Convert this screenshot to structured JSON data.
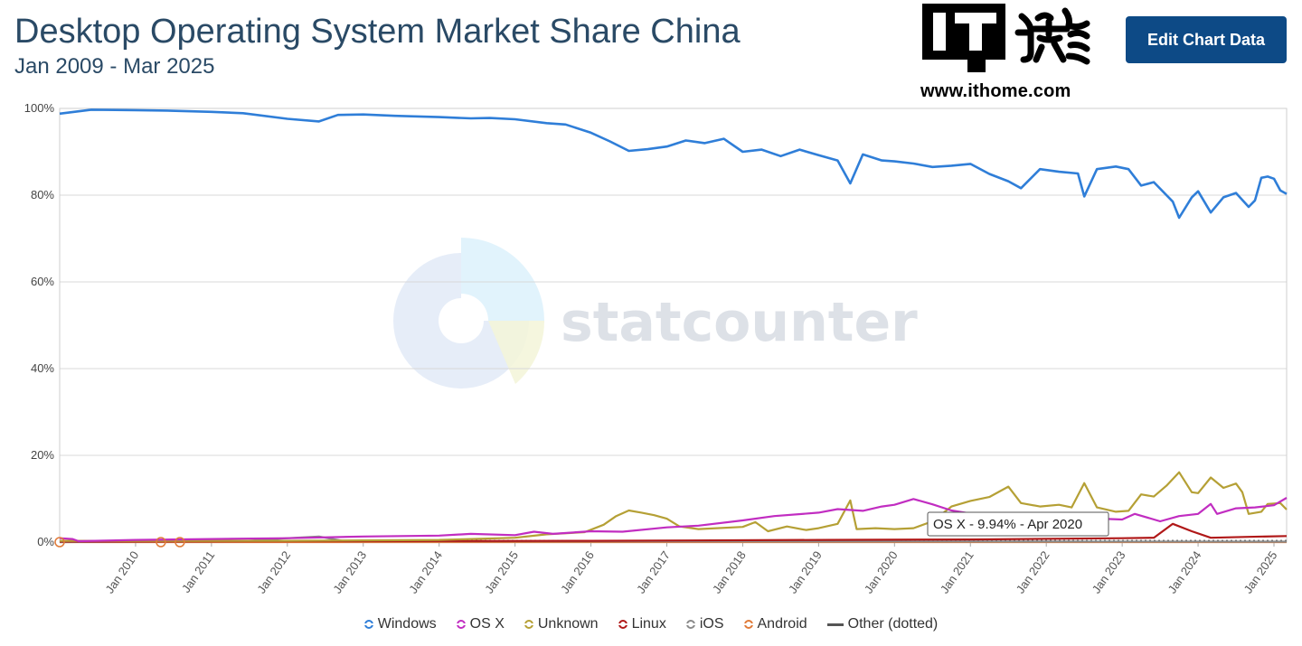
{
  "header": {
    "title": "Desktop Operating System Market Share China",
    "subtitle": "Jan 2009 - Mar 2025",
    "edit_button": "Edit Chart Data"
  },
  "logo": {
    "url_text": "www.ithome.com",
    "mark_text": "IT之家"
  },
  "watermark": {
    "text": "statcounter"
  },
  "colors": {
    "Windows": "#2f7ed8",
    "OS X": "#c12dc1",
    "Unknown": "#b5a035",
    "Linux": "#b01818",
    "iOS": "#8a8a8a",
    "Android": "#e07b39",
    "Other (dotted)": "#555555"
  },
  "tooltip": {
    "text": "OS X - 9.94% - Apr 2020"
  },
  "chart_data": {
    "type": "line",
    "title": "Desktop Operating System Market Share China",
    "subtitle": "Jan 2009 - Mar 2025",
    "x_start": "2009-01",
    "x_end": "2025-03",
    "x_ticks": [
      "Jan 2010",
      "Jan 2011",
      "Jan 2012",
      "Jan 2013",
      "Jan 2014",
      "Jan 2015",
      "Jan 2016",
      "Jan 2017",
      "Jan 2018",
      "Jan 2019",
      "Jan 2020",
      "Jan 2021",
      "Jan 2022",
      "Jan 2023",
      "Jan 2024",
      "Jan 2025"
    ],
    "y_ticks": [
      "0%",
      "20%",
      "40%",
      "60%",
      "80%",
      "100%"
    ],
    "ylim": [
      0,
      100
    ],
    "grid": true,
    "legend_position": "bottom",
    "series": [
      {
        "name": "Windows",
        "points": [
          [
            "2009-01",
            98.8
          ],
          [
            "2009-06",
            99.7
          ],
          [
            "2010-01",
            99.6
          ],
          [
            "2010-06",
            99.5
          ],
          [
            "2011-01",
            99.2
          ],
          [
            "2011-06",
            98.9
          ],
          [
            "2012-01",
            97.6
          ],
          [
            "2012-06",
            97.0
          ],
          [
            "2012-09",
            98.5
          ],
          [
            "2013-01",
            98.6
          ],
          [
            "2013-06",
            98.3
          ],
          [
            "2014-01",
            98.0
          ],
          [
            "2014-06",
            97.7
          ],
          [
            "2014-09",
            97.8
          ],
          [
            "2015-01",
            97.5
          ],
          [
            "2015-06",
            96.6
          ],
          [
            "2015-09",
            96.3
          ],
          [
            "2016-01",
            94.4
          ],
          [
            "2016-04",
            92.4
          ],
          [
            "2016-07",
            90.2
          ],
          [
            "2016-10",
            90.6
          ],
          [
            "2017-01",
            91.2
          ],
          [
            "2017-04",
            92.6
          ],
          [
            "2017-07",
            92.0
          ],
          [
            "2017-10",
            93.0
          ],
          [
            "2018-01",
            90.0
          ],
          [
            "2018-04",
            90.5
          ],
          [
            "2018-07",
            89.0
          ],
          [
            "2018-10",
            90.5
          ],
          [
            "2019-01",
            89.2
          ],
          [
            "2019-04",
            88.0
          ],
          [
            "2019-06",
            82.7
          ],
          [
            "2019-08",
            89.4
          ],
          [
            "2019-11",
            88.0
          ],
          [
            "2020-01",
            87.8
          ],
          [
            "2020-04",
            87.3
          ],
          [
            "2020-07",
            86.5
          ],
          [
            "2020-10",
            86.8
          ],
          [
            "2021-01",
            87.2
          ],
          [
            "2021-04",
            84.9
          ],
          [
            "2021-07",
            83.2
          ],
          [
            "2021-09",
            81.6
          ],
          [
            "2021-12",
            86.0
          ],
          [
            "2022-03",
            85.4
          ],
          [
            "2022-06",
            85.0
          ],
          [
            "2022-07",
            79.7
          ],
          [
            "2022-09",
            86.0
          ],
          [
            "2022-12",
            86.6
          ],
          [
            "2023-02",
            86.0
          ],
          [
            "2023-04",
            82.2
          ],
          [
            "2023-06",
            83.0
          ],
          [
            "2023-09",
            78.5
          ],
          [
            "2023-10",
            74.8
          ],
          [
            "2023-12",
            79.5
          ],
          [
            "2024-01",
            80.9
          ],
          [
            "2024-03",
            76.0
          ],
          [
            "2024-05",
            79.5
          ],
          [
            "2024-07",
            80.5
          ],
          [
            "2024-09",
            77.3
          ],
          [
            "2024-10",
            78.8
          ],
          [
            "2024-11",
            84.0
          ],
          [
            "2024-12",
            84.3
          ],
          [
            "2025-01",
            83.8
          ],
          [
            "2025-02",
            81.1
          ],
          [
            "2025-03",
            80.3
          ]
        ]
      },
      {
        "name": "OS X",
        "points": [
          [
            "2009-01",
            0.9
          ],
          [
            "2009-03",
            0.7
          ],
          [
            "2009-04",
            0.2
          ],
          [
            "2010-01",
            0.5
          ],
          [
            "2011-01",
            0.7
          ],
          [
            "2012-01",
            0.9
          ],
          [
            "2013-01",
            1.3
          ],
          [
            "2014-01",
            1.5
          ],
          [
            "2014-06",
            1.9
          ],
          [
            "2015-01",
            1.6
          ],
          [
            "2015-04",
            2.4
          ],
          [
            "2015-07",
            1.9
          ],
          [
            "2016-01",
            2.5
          ],
          [
            "2016-06",
            2.4
          ],
          [
            "2017-01",
            3.4
          ],
          [
            "2017-06",
            3.8
          ],
          [
            "2018-01",
            5.0
          ],
          [
            "2018-06",
            6.0
          ],
          [
            "2019-01",
            6.8
          ],
          [
            "2019-04",
            7.6
          ],
          [
            "2019-08",
            7.2
          ],
          [
            "2019-11",
            8.2
          ],
          [
            "2020-01",
            8.6
          ],
          [
            "2020-04",
            9.94
          ],
          [
            "2020-07",
            8.7
          ],
          [
            "2020-10",
            7.3
          ],
          [
            "2021-01",
            6.6
          ],
          [
            "2021-06",
            6.2
          ],
          [
            "2022-01",
            5.9
          ],
          [
            "2022-06",
            5.6
          ],
          [
            "2023-01",
            5.2
          ],
          [
            "2023-03",
            6.5
          ],
          [
            "2023-07",
            4.8
          ],
          [
            "2023-10",
            6.0
          ],
          [
            "2024-01",
            6.5
          ],
          [
            "2024-03",
            8.8
          ],
          [
            "2024-04",
            6.5
          ],
          [
            "2024-07",
            7.8
          ],
          [
            "2024-10",
            8.0
          ],
          [
            "2025-01",
            8.5
          ],
          [
            "2025-03",
            10.2
          ]
        ]
      },
      {
        "name": "Unknown",
        "points": [
          [
            "2009-01",
            0.3
          ],
          [
            "2012-01",
            0.3
          ],
          [
            "2014-01",
            0.5
          ],
          [
            "2015-01",
            1.0
          ],
          [
            "2015-06",
            1.8
          ],
          [
            "2015-12",
            2.3
          ],
          [
            "2016-03",
            4.0
          ],
          [
            "2016-05",
            6.0
          ],
          [
            "2016-07",
            7.3
          ],
          [
            "2016-09",
            6.8
          ],
          [
            "2016-11",
            6.2
          ],
          [
            "2017-01",
            5.4
          ],
          [
            "2017-03",
            3.6
          ],
          [
            "2017-06",
            3.0
          ],
          [
            "2018-01",
            3.5
          ],
          [
            "2018-03",
            4.6
          ],
          [
            "2018-05",
            2.5
          ],
          [
            "2018-08",
            3.6
          ],
          [
            "2018-11",
            2.8
          ],
          [
            "2019-01",
            3.2
          ],
          [
            "2019-04",
            4.2
          ],
          [
            "2019-06",
            9.6
          ],
          [
            "2019-07",
            3.0
          ],
          [
            "2019-10",
            3.2
          ],
          [
            "2020-01",
            3.0
          ],
          [
            "2020-04",
            3.2
          ],
          [
            "2020-07",
            4.8
          ],
          [
            "2020-10",
            8.2
          ],
          [
            "2021-01",
            9.5
          ],
          [
            "2021-04",
            10.4
          ],
          [
            "2021-07",
            12.8
          ],
          [
            "2021-09",
            9.0
          ],
          [
            "2021-12",
            8.2
          ],
          [
            "2022-03",
            8.6
          ],
          [
            "2022-05",
            8.0
          ],
          [
            "2022-07",
            13.6
          ],
          [
            "2022-09",
            8.0
          ],
          [
            "2022-12",
            7.0
          ],
          [
            "2023-02",
            7.2
          ],
          [
            "2023-04",
            11.0
          ],
          [
            "2023-06",
            10.5
          ],
          [
            "2023-08",
            13.0
          ],
          [
            "2023-10",
            16.1
          ],
          [
            "2023-12",
            11.5
          ],
          [
            "2024-01",
            11.3
          ],
          [
            "2024-03",
            14.9
          ],
          [
            "2024-05",
            12.5
          ],
          [
            "2024-07",
            13.5
          ],
          [
            "2024-08",
            11.5
          ],
          [
            "2024-09",
            6.5
          ],
          [
            "2024-11",
            7.0
          ],
          [
            "2024-12",
            8.8
          ],
          [
            "2025-02",
            9.0
          ],
          [
            "2025-03",
            7.5
          ]
        ]
      },
      {
        "name": "Linux",
        "points": [
          [
            "2009-01",
            0.1
          ],
          [
            "2016-01",
            0.3
          ],
          [
            "2019-01",
            0.5
          ],
          [
            "2021-01",
            0.6
          ],
          [
            "2023-01",
            0.9
          ],
          [
            "2023-06",
            1.0
          ],
          [
            "2023-09",
            4.2
          ],
          [
            "2023-12",
            2.5
          ],
          [
            "2024-03",
            1.0
          ],
          [
            "2024-09",
            1.2
          ],
          [
            "2025-03",
            1.4
          ]
        ]
      },
      {
        "name": "iOS",
        "points": [
          [
            "2009-01",
            0.0
          ],
          [
            "2011-06",
            0.2
          ],
          [
            "2012-01",
            0.9
          ],
          [
            "2012-06",
            1.3
          ],
          [
            "2012-10",
            0.2
          ],
          [
            "2025-03",
            0.1
          ]
        ]
      },
      {
        "name": "Android",
        "points": [
          [
            "2009-01",
            0.0
          ],
          [
            "2025-03",
            0.0
          ]
        ]
      },
      {
        "name": "Other (dotted)",
        "points": [
          [
            "2009-01",
            0.3
          ],
          [
            "2025-03",
            0.3
          ]
        ]
      }
    ]
  }
}
